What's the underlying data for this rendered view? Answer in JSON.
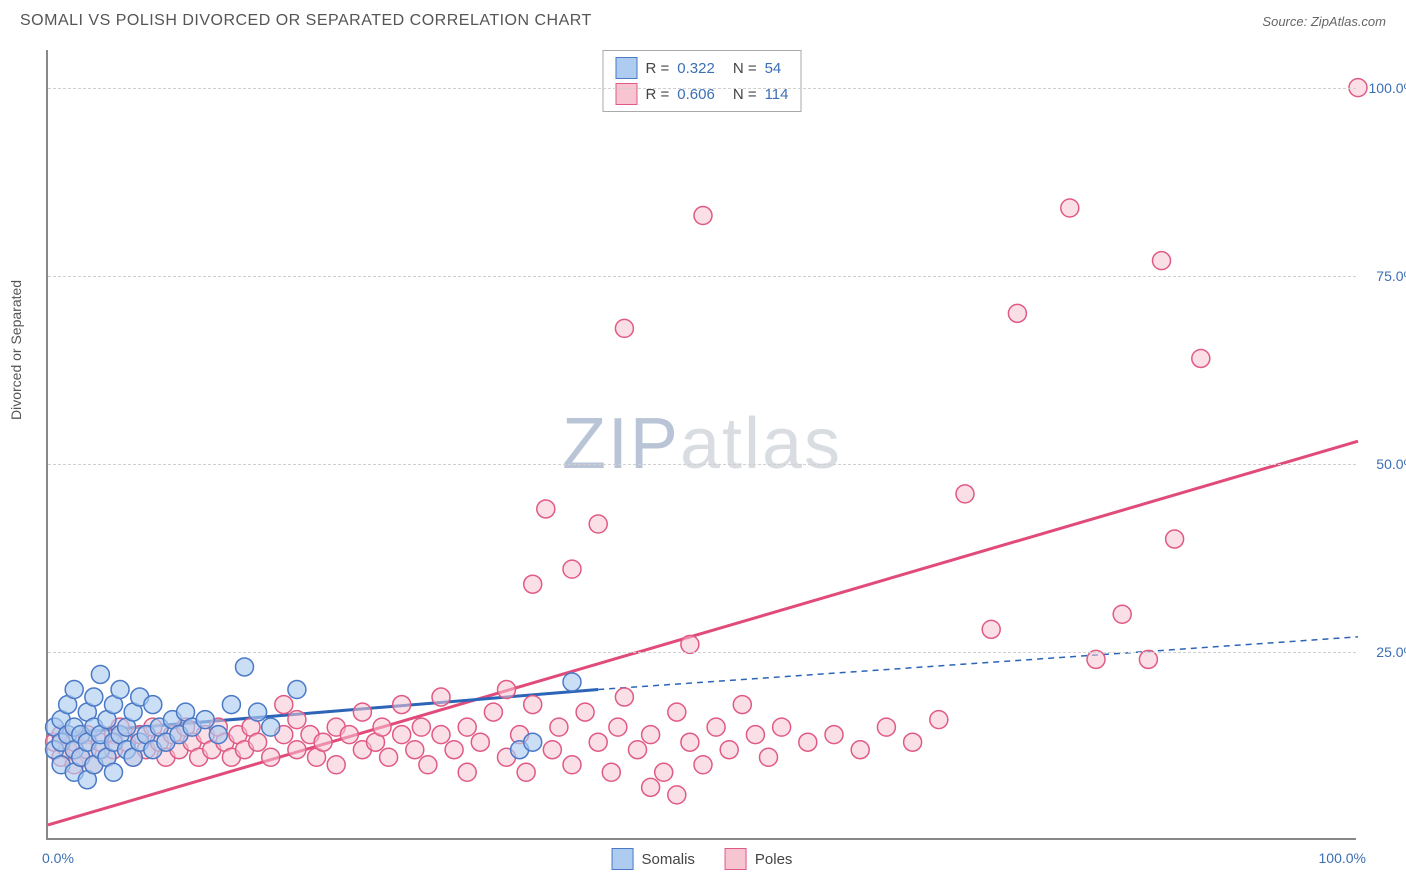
{
  "header": {
    "title": "SOMALI VS POLISH DIVORCED OR SEPARATED CORRELATION CHART",
    "source_label": "Source:",
    "source_name": "ZipAtlas.com"
  },
  "chart": {
    "type": "scatter",
    "ylabel": "Divorced or Separated",
    "xlim": [
      0,
      100
    ],
    "ylim": [
      0,
      105
    ],
    "yticks": [
      25,
      50,
      75,
      100
    ],
    "ytick_labels": [
      "25.0%",
      "50.0%",
      "75.0%",
      "100.0%"
    ],
    "xtick_min_label": "0.0%",
    "xtick_max_label": "100.0%",
    "grid_color": "#d0d0d0",
    "axis_color": "#888888",
    "background_color": "#ffffff",
    "marker_radius": 9,
    "marker_stroke_width": 1.5,
    "watermark_bold": "ZIP",
    "watermark_rest": "atlas"
  },
  "stats_legend": {
    "rows": [
      {
        "swatch_fill": "#aeccf0",
        "swatch_border": "#4a79c7",
        "r_label": "R =",
        "r": "0.322",
        "n_label": "N =",
        "n": "54"
      },
      {
        "swatch_fill": "#f7c4d2",
        "swatch_border": "#e05a85",
        "r_label": "R =",
        "r": "0.606",
        "n_label": "N =",
        "n": "114"
      }
    ]
  },
  "series_legend": {
    "items": [
      {
        "label": "Somalis",
        "fill": "#aeccf0",
        "border": "#4a79c7"
      },
      {
        "label": "Poles",
        "fill": "#f7c4d2",
        "border": "#e05a85"
      }
    ]
  },
  "series": {
    "somalis": {
      "color_fill": "#aeccf0",
      "color_stroke": "#4a79c7",
      "fill_opacity": 0.65,
      "points": [
        [
          0.5,
          12
        ],
        [
          0.5,
          15
        ],
        [
          1,
          10
        ],
        [
          1,
          13
        ],
        [
          1,
          16
        ],
        [
          1.5,
          14
        ],
        [
          1.5,
          18
        ],
        [
          2,
          9
        ],
        [
          2,
          12
        ],
        [
          2,
          15
        ],
        [
          2,
          20
        ],
        [
          2.5,
          11
        ],
        [
          2.5,
          14
        ],
        [
          3,
          8
        ],
        [
          3,
          13
        ],
        [
          3,
          17
        ],
        [
          3.5,
          10
        ],
        [
          3.5,
          15
        ],
        [
          3.5,
          19
        ],
        [
          4,
          12
        ],
        [
          4,
          14
        ],
        [
          4,
          22
        ],
        [
          4.5,
          11
        ],
        [
          4.5,
          16
        ],
        [
          5,
          9
        ],
        [
          5,
          13
        ],
        [
          5,
          18
        ],
        [
          5.5,
          14
        ],
        [
          5.5,
          20
        ],
        [
          6,
          12
        ],
        [
          6,
          15
        ],
        [
          6.5,
          11
        ],
        [
          6.5,
          17
        ],
        [
          7,
          13
        ],
        [
          7,
          19
        ],
        [
          7.5,
          14
        ],
        [
          8,
          12
        ],
        [
          8,
          18
        ],
        [
          8.5,
          15
        ],
        [
          9,
          13
        ],
        [
          9.5,
          16
        ],
        [
          10,
          14
        ],
        [
          10.5,
          17
        ],
        [
          11,
          15
        ],
        [
          12,
          16
        ],
        [
          13,
          14
        ],
        [
          14,
          18
        ],
        [
          15,
          23
        ],
        [
          16,
          17
        ],
        [
          17,
          15
        ],
        [
          19,
          20
        ],
        [
          36,
          12
        ],
        [
          37,
          13
        ],
        [
          40,
          21
        ]
      ],
      "trend": {
        "x1": 0,
        "y1": 14,
        "x2": 42,
        "y2": 20,
        "x2_ext": 100,
        "y2_ext": 27,
        "color": "#2c64b8",
        "width": 3,
        "dash_ext": "6,5"
      }
    },
    "poles": {
      "color_fill": "#f7c4d2",
      "color_stroke": "#e05a85",
      "fill_opacity": 0.55,
      "points": [
        [
          0.5,
          13
        ],
        [
          1,
          11
        ],
        [
          1,
          14
        ],
        [
          1.5,
          12
        ],
        [
          2,
          10
        ],
        [
          2,
          13
        ],
        [
          2.5,
          11
        ],
        [
          3,
          14
        ],
        [
          3,
          12
        ],
        [
          3.5,
          10
        ],
        [
          4,
          13
        ],
        [
          4.5,
          11
        ],
        [
          5,
          14
        ],
        [
          5,
          12
        ],
        [
          5.5,
          15
        ],
        [
          6,
          13
        ],
        [
          6.5,
          11
        ],
        [
          7,
          14
        ],
        [
          7.5,
          12
        ],
        [
          8,
          15
        ],
        [
          8.5,
          13
        ],
        [
          9,
          11
        ],
        [
          9.5,
          14
        ],
        [
          10,
          12
        ],
        [
          10.5,
          15
        ],
        [
          11,
          13
        ],
        [
          11.5,
          11
        ],
        [
          12,
          14
        ],
        [
          12.5,
          12
        ],
        [
          13,
          15
        ],
        [
          13.5,
          13
        ],
        [
          14,
          11
        ],
        [
          14.5,
          14
        ],
        [
          15,
          12
        ],
        [
          15.5,
          15
        ],
        [
          16,
          13
        ],
        [
          17,
          11
        ],
        [
          18,
          14
        ],
        [
          18,
          18
        ],
        [
          19,
          12
        ],
        [
          19,
          16
        ],
        [
          20,
          14
        ],
        [
          20.5,
          11
        ],
        [
          21,
          13
        ],
        [
          22,
          15
        ],
        [
          22,
          10
        ],
        [
          23,
          14
        ],
        [
          24,
          12
        ],
        [
          24,
          17
        ],
        [
          25,
          13
        ],
        [
          25.5,
          15
        ],
        [
          26,
          11
        ],
        [
          27,
          14
        ],
        [
          27,
          18
        ],
        [
          28,
          12
        ],
        [
          28.5,
          15
        ],
        [
          29,
          10
        ],
        [
          30,
          14
        ],
        [
          30,
          19
        ],
        [
          31,
          12
        ],
        [
          32,
          15
        ],
        [
          32,
          9
        ],
        [
          33,
          13
        ],
        [
          34,
          17
        ],
        [
          35,
          11
        ],
        [
          35,
          20
        ],
        [
          36,
          14
        ],
        [
          36.5,
          9
        ],
        [
          37,
          34
        ],
        [
          37,
          18
        ],
        [
          38,
          44
        ],
        [
          38.5,
          12
        ],
        [
          39,
          15
        ],
        [
          40,
          36
        ],
        [
          40,
          10
        ],
        [
          41,
          17
        ],
        [
          42,
          13
        ],
        [
          42,
          42
        ],
        [
          43,
          9
        ],
        [
          43.5,
          15
        ],
        [
          44,
          68
        ],
        [
          44,
          19
        ],
        [
          45,
          12
        ],
        [
          46,
          14
        ],
        [
          46,
          7
        ],
        [
          47,
          9
        ],
        [
          48,
          17
        ],
        [
          48,
          6
        ],
        [
          49,
          13
        ],
        [
          49,
          26
        ],
        [
          50,
          10
        ],
        [
          50,
          83
        ],
        [
          51,
          15
        ],
        [
          52,
          12
        ],
        [
          53,
          18
        ],
        [
          54,
          14
        ],
        [
          55,
          11
        ],
        [
          56,
          15
        ],
        [
          58,
          13
        ],
        [
          60,
          14
        ],
        [
          62,
          12
        ],
        [
          64,
          15
        ],
        [
          66,
          13
        ],
        [
          68,
          16
        ],
        [
          70,
          46
        ],
        [
          72,
          28
        ],
        [
          74,
          70
        ],
        [
          78,
          84
        ],
        [
          80,
          24
        ],
        [
          82,
          30
        ],
        [
          84,
          24
        ],
        [
          85,
          77
        ],
        [
          86,
          40
        ],
        [
          88,
          64
        ],
        [
          100,
          100
        ]
      ],
      "trend": {
        "x1": 0,
        "y1": 2,
        "x2": 100,
        "y2": 53,
        "color": "#e14b7a",
        "width": 3
      }
    }
  }
}
